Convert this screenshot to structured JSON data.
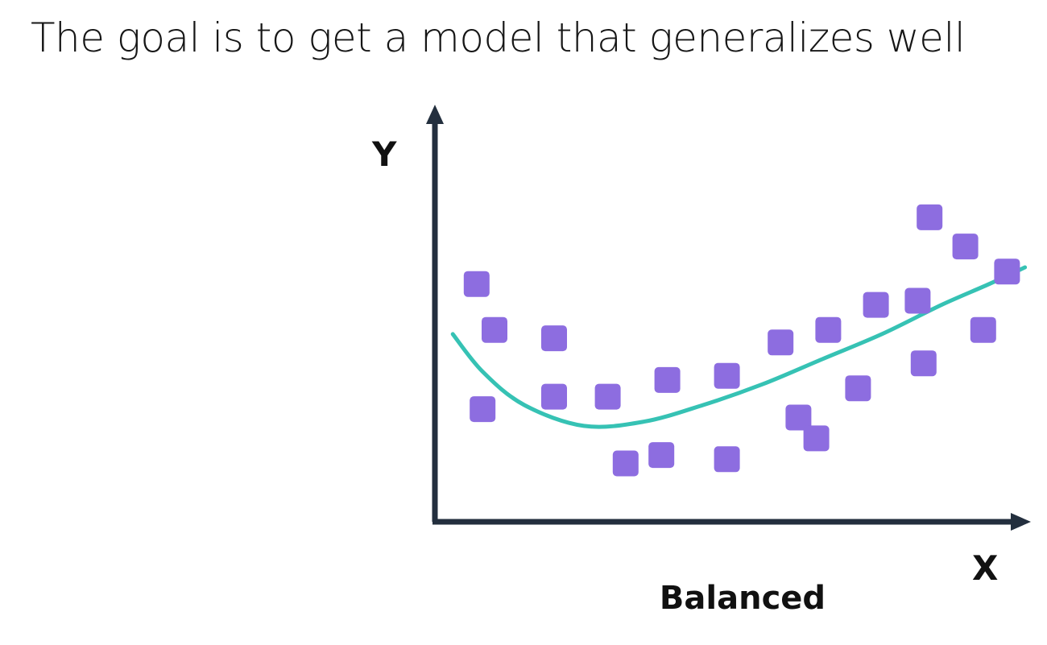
{
  "slide": {
    "title": "The goal is to get a model that generalizes well"
  },
  "diagram": {
    "x_axis_label": "X",
    "y_axis_label": "Y",
    "caption": "Balanced",
    "colors": {
      "axes": "#232f3e",
      "points": "#8d6de0",
      "fit_curve": "#36c2b4",
      "text": "#111111"
    },
    "points": [
      {
        "x": 0.7,
        "y": 5.7
      },
      {
        "x": 1.0,
        "y": 4.6
      },
      {
        "x": 0.8,
        "y": 2.7
      },
      {
        "x": 2.0,
        "y": 4.4
      },
      {
        "x": 2.0,
        "y": 3.0
      },
      {
        "x": 2.9,
        "y": 3.0
      },
      {
        "x": 3.2,
        "y": 1.4
      },
      {
        "x": 3.8,
        "y": 1.6
      },
      {
        "x": 3.9,
        "y": 3.4
      },
      {
        "x": 4.9,
        "y": 3.5
      },
      {
        "x": 4.9,
        "y": 1.5
      },
      {
        "x": 5.8,
        "y": 4.3
      },
      {
        "x": 6.1,
        "y": 2.5
      },
      {
        "x": 6.4,
        "y": 2.0
      },
      {
        "x": 6.6,
        "y": 4.6
      },
      {
        "x": 7.1,
        "y": 3.2
      },
      {
        "x": 7.4,
        "y": 5.2
      },
      {
        "x": 8.1,
        "y": 5.3
      },
      {
        "x": 8.2,
        "y": 3.8
      },
      {
        "x": 8.3,
        "y": 7.3
      },
      {
        "x": 8.9,
        "y": 6.6
      },
      {
        "x": 9.2,
        "y": 4.6
      },
      {
        "x": 9.6,
        "y": 6.0
      }
    ],
    "fit_curve": [
      {
        "x": 0.3,
        "y": 4.5
      },
      {
        "x": 0.8,
        "y": 3.6
      },
      {
        "x": 1.5,
        "y": 2.8
      },
      {
        "x": 2.5,
        "y": 2.3
      },
      {
        "x": 3.5,
        "y": 2.4
      },
      {
        "x": 4.5,
        "y": 2.8
      },
      {
        "x": 5.5,
        "y": 3.3
      },
      {
        "x": 6.5,
        "y": 3.9
      },
      {
        "x": 7.5,
        "y": 4.5
      },
      {
        "x": 8.5,
        "y": 5.2
      },
      {
        "x": 9.3,
        "y": 5.7
      },
      {
        "x": 9.9,
        "y": 6.1
      }
    ]
  }
}
